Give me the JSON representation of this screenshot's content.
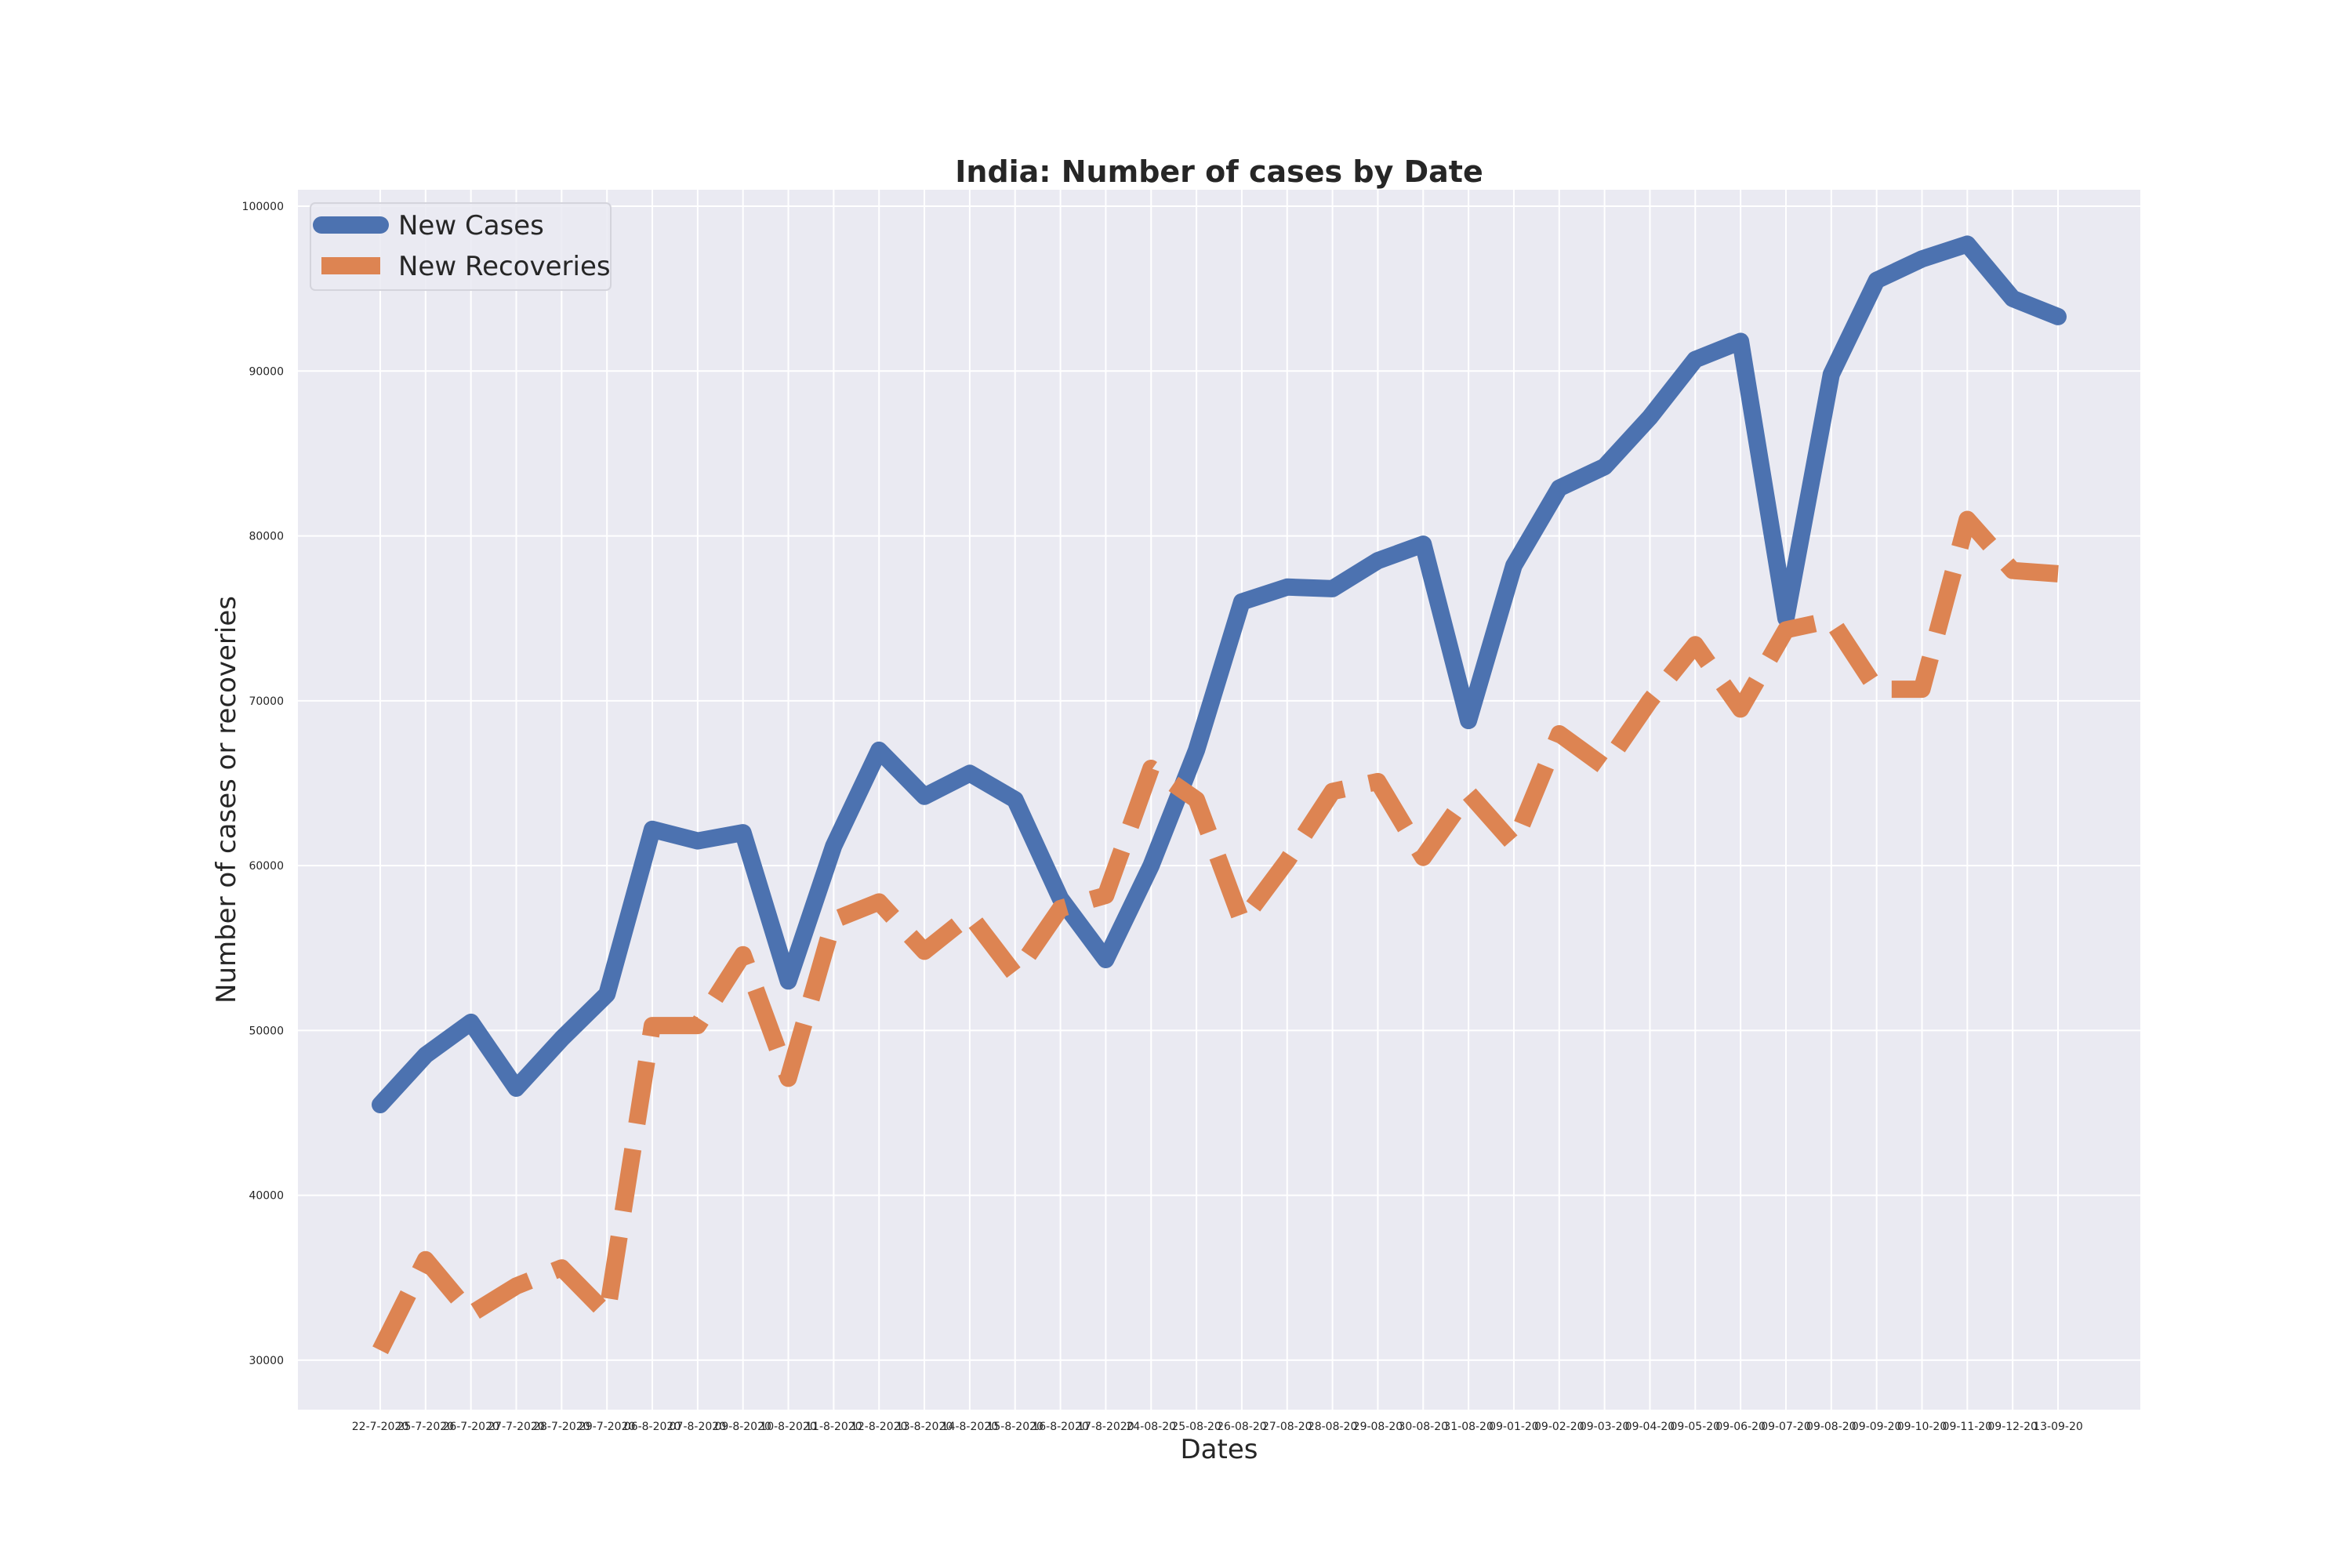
{
  "chart_data": {
    "type": "line",
    "title": "India: Number of cases by Date",
    "xlabel": "Dates",
    "ylabel": "Number of cases or recoveries",
    "ylim": [
      27000,
      101000
    ],
    "yticks": [
      30000,
      40000,
      50000,
      60000,
      70000,
      80000,
      90000,
      100000
    ],
    "grid": true,
    "legend_position": "top-left",
    "colors": {
      "new_cases": "#4c72b0",
      "new_recoveries": "#dd8452",
      "plot_bg": "#eaeaf2",
      "grid": "#ffffff"
    },
    "categories": [
      "22-7-2020",
      "25-7-2020",
      "26-7-2020",
      "27-7-2020",
      "28-7-2020",
      "29-7-2020",
      "06-8-2020",
      "07-8-2020",
      "09-8-2020",
      "10-8-2020",
      "11-8-2020",
      "12-8-2020",
      "13-8-2020",
      "14-8-2020",
      "15-8-2020",
      "16-8-2020",
      "17-8-2020",
      "24-08-20",
      "25-08-20",
      "26-08-20",
      "27-08-20",
      "28-08-20",
      "29-08-20",
      "30-08-20",
      "31-08-20",
      "09-01-20",
      "09-02-20",
      "09-03-20",
      "09-04-20",
      "09-05-20",
      "09-06-20",
      "09-07-20",
      "09-08-20",
      "09-09-20",
      "09-10-20",
      "09-11-20",
      "09-12-20",
      "13-09-20"
    ],
    "series": [
      {
        "name": "New Cases",
        "style": "solid",
        "values": [
          45500,
          48500,
          50500,
          46500,
          49500,
          52200,
          62200,
          61500,
          62000,
          53000,
          61200,
          67000,
          64200,
          65600,
          64000,
          58000,
          54300,
          60000,
          67000,
          76000,
          76900,
          76800,
          78500,
          79500,
          68800,
          78200,
          82900,
          84200,
          87200,
          90700,
          91800,
          75000,
          89800,
          95500,
          96800,
          97700,
          94400,
          93300
        ]
      },
      {
        "name": "New Recoveries",
        "style": "dashed",
        "values": [
          30600,
          36100,
          32800,
          34500,
          35600,
          32800,
          50300,
          50300,
          54600,
          47100,
          56700,
          57800,
          54800,
          57000,
          53400,
          57400,
          58200,
          65900,
          64000,
          56600,
          60300,
          64500,
          65100,
          60500,
          64400,
          61300,
          68000,
          66000,
          70000,
          73400,
          69500,
          74300,
          74900,
          70700,
          70700,
          81000,
          77900,
          77700
        ]
      }
    ]
  }
}
